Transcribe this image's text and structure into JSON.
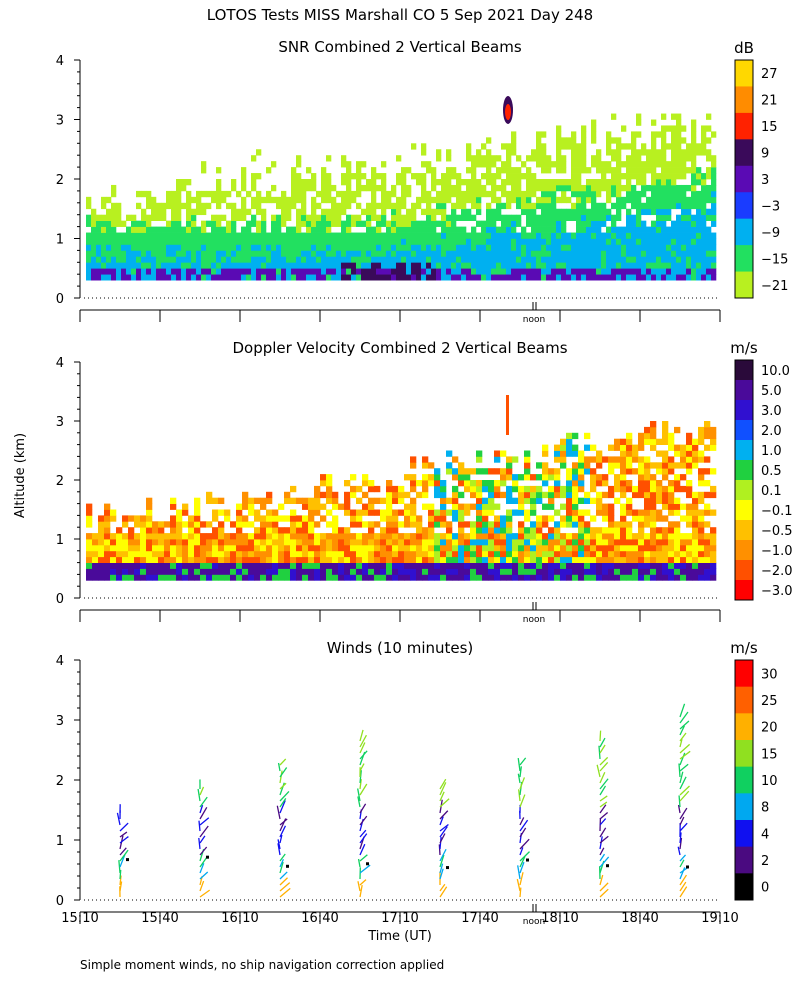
{
  "page_title": "LOTOS Tests MISS Marshall CO   5 Sep 2021 Day 248",
  "y_axis_label": "Altitude (km)",
  "x_axis_label": "Time (UT)",
  "noon_label": "noon",
  "footnote": "Simple moment winds, no ship navigation correction applied",
  "chart_data": [
    {
      "type": "heatmap",
      "title": "SNR Combined 2 Vertical Beams",
      "xlabel": "Time (UT)",
      "ylabel": "Altitude (km)",
      "ylim": [
        0,
        4
      ],
      "yticks": [
        0,
        1,
        2,
        3,
        4
      ],
      "colorbar_unit": "dB",
      "colorbar_levels": [
        "27",
        "21",
        "15",
        "9",
        "3",
        "−3",
        "−9",
        "−15",
        "−21"
      ],
      "colorbar_colors": [
        "#ffd800",
        "#ff8c00",
        "#ff2200",
        "#3a0a5a",
        "#5a0ab4",
        "#1a3cff",
        "#00b0f0",
        "#22e060",
        "#b8f020"
      ]
    },
    {
      "type": "heatmap",
      "title": "Doppler Velocity Combined 2 Vertical Beams",
      "xlabel": "Time (UT)",
      "ylabel": "Altitude (km)",
      "ylim": [
        0,
        4
      ],
      "yticks": [
        0,
        1,
        2,
        3,
        4
      ],
      "colorbar_unit": "m/s",
      "colorbar_levels": [
        "10.0",
        "5.0",
        "3.0",
        "2.0",
        "1.0",
        "0.5",
        "0.1",
        "−0.1",
        "−0.5",
        "−1.0",
        "−2.0",
        "−3.0"
      ],
      "colorbar_colors": [
        "#2a0a3a",
        "#4a0a9a",
        "#3010d0",
        "#1050ff",
        "#00b0f0",
        "#20d040",
        "#b0f020",
        "#ffff00",
        "#ffc000",
        "#ff9000",
        "#ff5000",
        "#ff0000"
      ]
    },
    {
      "type": "scatter",
      "title": "Winds (10 minutes)",
      "xlabel": "Time (UT)",
      "ylabel": "Altitude (km)",
      "ylim": [
        0,
        4
      ],
      "yticks": [
        0,
        1,
        2,
        3,
        4
      ],
      "xticks": [
        "15:10",
        "15:40",
        "16:10",
        "16:40",
        "17:10",
        "17:40",
        "18:10",
        "18:40",
        "19:10"
      ],
      "colorbar_unit": "m/s",
      "colorbar_levels": [
        "30",
        "25",
        "20",
        "15",
        "10",
        "8",
        "4",
        "2",
        "0"
      ],
      "colorbar_colors": [
        "#ff0000",
        "#ff6000",
        "#ffb000",
        "#90e020",
        "#10d060",
        "#00a8f0",
        "#1010f0",
        "#4a0a80",
        "#000000"
      ],
      "profile_times": [
        "15:25",
        "15:55",
        "16:25",
        "16:55",
        "17:25",
        "17:55",
        "18:25",
        "18:55"
      ]
    }
  ]
}
